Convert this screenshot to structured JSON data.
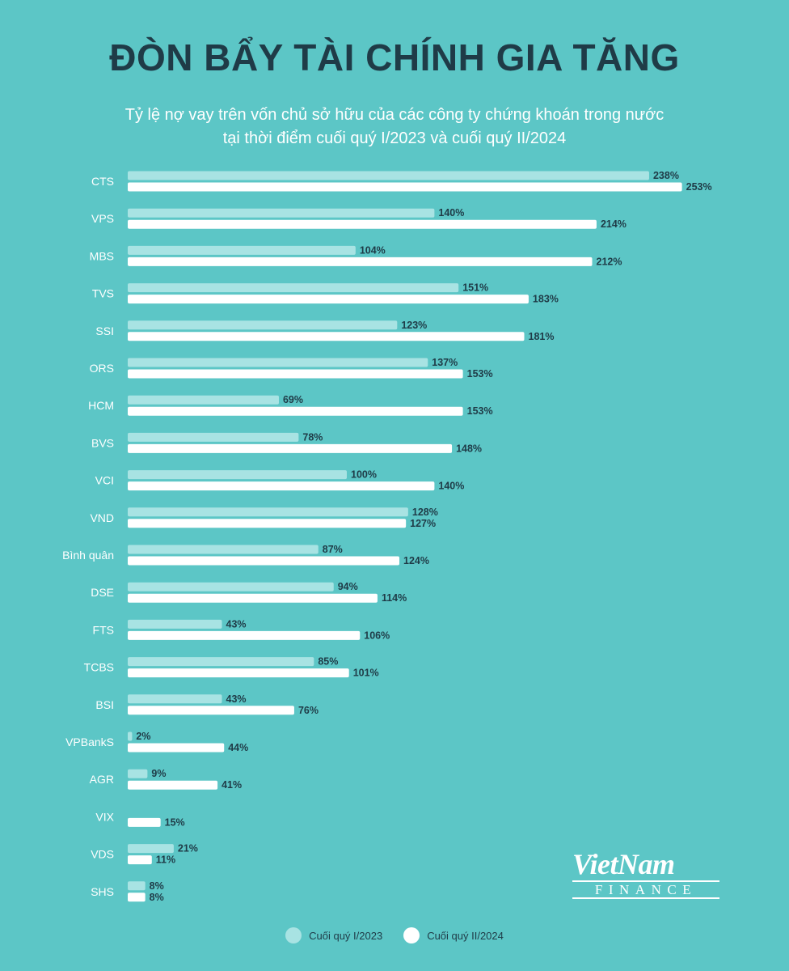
{
  "title": "ĐÒN BẨY TÀI CHÍNH GIA TĂNG",
  "subtitle_line1": "Tỷ lệ nợ vay trên vốn chủ sở hữu của các công ty chứng khoán trong nước",
  "subtitle_line2": "tại thời điểm cuối quý I/2023 và cuối quý II/2024",
  "logo": {
    "main": "VietNam",
    "sub": "FINANCE"
  },
  "colors": {
    "background": "#5cc6c6",
    "series1": "#a8e3e3",
    "series2": "#ffffff",
    "label": "#1f3b47"
  },
  "chart_data": {
    "type": "bar",
    "orientation": "horizontal",
    "categories": [
      "CTS",
      "VPS",
      "MBS",
      "TVS",
      "SSI",
      "ORS",
      "HCM",
      "BVS",
      "VCI",
      "VND",
      "Bình quân",
      "DSE",
      "FTS",
      "TCBS",
      "BSI",
      "VPBankS",
      "AGR",
      "VIX",
      "VDS",
      "SHS"
    ],
    "series": [
      {
        "name": "Cuối quý I/2023",
        "values": [
          238,
          140,
          104,
          151,
          123,
          137,
          69,
          78,
          100,
          128,
          87,
          94,
          43,
          85,
          43,
          2,
          9,
          null,
          21,
          8
        ]
      },
      {
        "name": "Cuối quý II/2024",
        "values": [
          253,
          214,
          212,
          183,
          181,
          153,
          153,
          148,
          140,
          127,
          124,
          114,
          106,
          101,
          76,
          44,
          41,
          15,
          11,
          8
        ]
      }
    ],
    "unit": "%",
    "legend_position": "bottom",
    "grid": false
  },
  "legend": [
    {
      "label": "Cuối quý I/2023",
      "color": "#a8e3e3"
    },
    {
      "label": "Cuối quý II/2024",
      "color": "#ffffff"
    }
  ]
}
